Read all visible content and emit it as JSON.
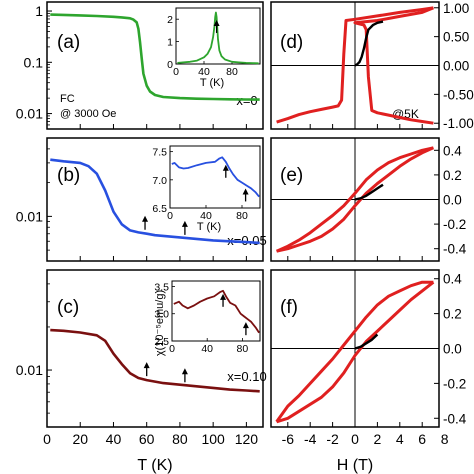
{
  "chart_data": [
    {
      "panel": "(a)",
      "type": "line",
      "yscale": "log",
      "xlim": [
        0,
        130
      ],
      "ylim": [
        0.005,
        1.5
      ],
      "ytick_labels": [
        "0.01",
        "0.1",
        "1"
      ],
      "yticks": [
        0.01,
        0.1,
        1
      ],
      "annotations": [
        "FC",
        "@ 3000 Oe"
      ],
      "series": [
        {
          "color": "#2ea52e",
          "x": [
            2,
            10,
            20,
            30,
            40,
            45,
            50,
            52,
            54,
            55,
            56,
            57,
            58,
            60,
            62,
            65,
            70,
            80,
            90,
            100,
            110,
            120,
            128
          ],
          "y": [
            0.85,
            0.84,
            0.82,
            0.8,
            0.77,
            0.75,
            0.72,
            0.68,
            0.6,
            0.45,
            0.25,
            0.12,
            0.06,
            0.035,
            0.027,
            0.023,
            0.021,
            0.02,
            0.0195,
            0.0192,
            0.019,
            0.0188,
            0.0187
          ]
        }
      ],
      "inset": {
        "xlabel": "T (K)",
        "xlim": [
          0,
          120
        ],
        "ylim": [
          0,
          2.5
        ],
        "xticks": [
          0,
          40,
          80
        ],
        "yticks": [
          0,
          1,
          2
        ],
        "xtick_labels": [
          "0",
          "40",
          "80"
        ],
        "ytick_labels": [
          "0",
          "1",
          "2"
        ],
        "series": {
          "color": "#2ea52e",
          "x": [
            2,
            10,
            20,
            30,
            40,
            45,
            50,
            53,
            55,
            56,
            57,
            58,
            59,
            60,
            62,
            65,
            70,
            80,
            90,
            100,
            110,
            118
          ],
          "y": [
            0.05,
            0.07,
            0.1,
            0.15,
            0.3,
            0.45,
            0.75,
            1.2,
            1.7,
            2.1,
            2.3,
            2.1,
            1.6,
            1.1,
            0.6,
            0.35,
            0.2,
            0.1,
            0.07,
            0.05,
            0.04,
            0.03
          ]
        },
        "arrows_x": [
          58
        ]
      }
    },
    {
      "panel": "(b)",
      "type": "line",
      "yscale": "log",
      "xlim": [
        0,
        130
      ],
      "ylim": [
        0.004,
        0.05
      ],
      "ytick_labels": [
        "0.01"
      ],
      "yticks": [
        0.01
      ],
      "annotations": [],
      "series": [
        {
          "color": "#2850e0",
          "x": [
            2,
            10,
            20,
            25,
            30,
            35,
            40,
            45,
            50,
            55,
            60,
            65,
            70,
            80,
            90,
            100,
            110,
            120,
            128
          ],
          "y": [
            0.032,
            0.031,
            0.03,
            0.028,
            0.024,
            0.017,
            0.011,
            0.0085,
            0.0075,
            0.0072,
            0.007,
            0.0068,
            0.0067,
            0.0065,
            0.0063,
            0.0061,
            0.006,
            0.0059,
            0.0058
          ]
        }
      ],
      "arrows_x": [
        59,
        83
      ],
      "inset": {
        "xlabel": "T (K)",
        "xlim": [
          0,
          100
        ],
        "ylim": [
          6.5,
          7.6
        ],
        "xticks": [
          0,
          40,
          80
        ],
        "yticks": [
          6.5,
          7.0,
          7.5
        ],
        "xtick_labels": [
          "0",
          "40",
          "80"
        ],
        "ytick_labels": [
          "6.5",
          "7.0",
          "7.5"
        ],
        "series": {
          "color": "#2850e0",
          "x": [
            2,
            5,
            10,
            15,
            20,
            30,
            40,
            50,
            55,
            58,
            62,
            66,
            70,
            75,
            80,
            85,
            90,
            95,
            99
          ],
          "y": [
            7.28,
            7.3,
            7.22,
            7.2,
            7.21,
            7.26,
            7.3,
            7.32,
            7.38,
            7.4,
            7.32,
            7.2,
            7.1,
            7.0,
            6.95,
            6.9,
            6.85,
            6.78,
            6.7
          ]
        },
        "arrows_x": [
          62,
          84
        ]
      }
    },
    {
      "panel": "(c)",
      "type": "line",
      "yscale": "log",
      "xlim": [
        0,
        130
      ],
      "ylim": [
        0.004,
        0.05
      ],
      "ytick_labels": [
        "0.01"
      ],
      "yticks": [
        0.01
      ],
      "annotations": [],
      "series": [
        {
          "color": "#7a1010",
          "x": [
            2,
            10,
            20,
            30,
            35,
            40,
            45,
            50,
            55,
            60,
            65,
            70,
            80,
            90,
            100,
            110,
            120,
            128
          ],
          "y": [
            0.019,
            0.0188,
            0.0183,
            0.0175,
            0.016,
            0.013,
            0.011,
            0.0095,
            0.0088,
            0.0085,
            0.0083,
            0.0081,
            0.0079,
            0.0077,
            0.0075,
            0.0073,
            0.0072,
            0.0071
          ]
        }
      ],
      "arrows_x": [
        60,
        83
      ],
      "inset": {
        "xlabel": "",
        "xlim": [
          0,
          100
        ],
        "ylim": [
          2.5,
          3.6
        ],
        "xticks": [
          0,
          40,
          80
        ],
        "yticks": [
          2.5,
          3.0,
          3.5
        ],
        "xtick_labels": [
          "0",
          "40",
          "80"
        ],
        "ytick_labels": [
          "2.5",
          "3.0",
          "3.5"
        ],
        "series": {
          "color": "#7a1010",
          "x": [
            2,
            8,
            12,
            18,
            25,
            32,
            40,
            48,
            55,
            58,
            62,
            66,
            72,
            78,
            82,
            86,
            90,
            95,
            99
          ],
          "y": [
            3.18,
            3.22,
            3.15,
            3.1,
            3.15,
            3.22,
            3.28,
            3.32,
            3.4,
            3.42,
            3.3,
            3.2,
            3.15,
            3.0,
            2.95,
            2.9,
            2.85,
            2.75,
            2.65
          ]
        },
        "arrows_x": [
          58,
          84
        ]
      }
    },
    {
      "panel": "(d)",
      "type": "line",
      "xlim": [
        -7.5,
        7.5
      ],
      "ylim": [
        -1.1,
        1.1
      ],
      "ytick_labels": [
        "1.00",
        "0.50",
        "0.00",
        "-0.50",
        "-1.00"
      ],
      "yticks": [
        1.0,
        0.5,
        0.0,
        -0.5,
        -1.0
      ],
      "annotations": [
        "@5K"
      ],
      "loop": {
        "color": "#e02020",
        "x_up": [
          -7,
          -6,
          -5,
          -4,
          -3,
          -2,
          -1.5,
          -1.2,
          -1.0,
          -0.8,
          0,
          2,
          4,
          6,
          7
        ],
        "y_up": [
          -0.98,
          -0.92,
          -0.85,
          -0.8,
          -0.76,
          -0.72,
          -0.7,
          -0.6,
          0.2,
          0.78,
          0.8,
          0.86,
          0.92,
          0.97,
          1.0
        ],
        "x_down": [
          7,
          6,
          4,
          2,
          0,
          0.8,
          1.0,
          1.2,
          1.5,
          2,
          3,
          4,
          5,
          6,
          7
        ],
        "y_down": [
          1.0,
          0.92,
          0.85,
          0.78,
          0.74,
          0.7,
          0.62,
          -0.2,
          -0.78,
          -0.82,
          -0.86,
          -0.9,
          -0.94,
          -0.97,
          -1.0
        ]
      },
      "virgin": {
        "color": "#000000",
        "x": [
          0,
          0.2,
          0.4,
          0.6,
          0.8,
          1.0,
          1.2,
          1.6,
          2.0,
          2.5
        ],
        "y": [
          0.0,
          0.02,
          0.06,
          0.15,
          0.3,
          0.48,
          0.62,
          0.7,
          0.74,
          0.76
        ]
      }
    },
    {
      "panel": "(e)",
      "type": "line",
      "xlim": [
        -7.5,
        7.5
      ],
      "ylim": [
        -0.5,
        0.5
      ],
      "ytick_labels": [
        "0.4",
        "0.2",
        "0.0",
        "-0.2",
        "-0.4"
      ],
      "yticks": [
        0.4,
        0.2,
        0.0,
        -0.2,
        -0.4
      ],
      "annotations": [],
      "loop": {
        "color": "#e02020",
        "x_up": [
          -7,
          -6,
          -5,
          -4,
          -3,
          -2,
          -1,
          0,
          1,
          2,
          3,
          4,
          5,
          6,
          7
        ],
        "y_up": [
          -0.42,
          -0.4,
          -0.37,
          -0.34,
          -0.3,
          -0.24,
          -0.16,
          -0.05,
          0.05,
          0.13,
          0.2,
          0.27,
          0.33,
          0.38,
          0.42
        ],
        "x_down": [
          7,
          6,
          5,
          4,
          3,
          2,
          1,
          0,
          -1,
          -2,
          -3,
          -4,
          -5,
          -6,
          -7
        ],
        "y_down": [
          0.42,
          0.4,
          0.37,
          0.34,
          0.3,
          0.24,
          0.16,
          0.05,
          -0.05,
          -0.13,
          -0.2,
          -0.27,
          -0.33,
          -0.38,
          -0.42
        ]
      },
      "virgin": {
        "color": "#000000",
        "x": [
          0,
          0.5,
          1.0,
          1.5,
          2.0,
          2.5
        ],
        "y": [
          0.0,
          0.01,
          0.03,
          0.06,
          0.09,
          0.12
        ]
      }
    },
    {
      "panel": "(f)",
      "type": "line",
      "xlim": [
        -7.5,
        7.5
      ],
      "ylim": [
        -0.45,
        0.45
      ],
      "ytick_labels": [
        "0.4",
        "0.2",
        "0.0",
        "-0.2",
        "-0.4"
      ],
      "yticks": [
        0.4,
        0.2,
        0.0,
        -0.2,
        -0.4
      ],
      "xticks": [
        -6,
        -4,
        -2,
        0,
        2,
        4,
        6,
        8
      ],
      "xtick_labels": [
        "-6",
        "-4",
        "-2",
        "0",
        "2",
        "4",
        "6",
        "8"
      ],
      "annotations": [],
      "loop": {
        "color": "#e02020",
        "x_up": [
          -7,
          -6,
          -5,
          -4,
          -3,
          -2,
          -1,
          0,
          1,
          2,
          3,
          4,
          5,
          6,
          7
        ],
        "y_up": [
          -0.42,
          -0.4,
          -0.36,
          -0.32,
          -0.28,
          -0.22,
          -0.14,
          -0.04,
          0.04,
          0.1,
          0.16,
          0.22,
          0.28,
          0.33,
          0.38
        ],
        "x_down": [
          7,
          6,
          5,
          4,
          3,
          2,
          1,
          0,
          -1,
          -2,
          -3,
          -4,
          -5,
          -6,
          -7
        ],
        "y_down": [
          0.38,
          0.38,
          0.36,
          0.33,
          0.3,
          0.25,
          0.18,
          0.1,
          0.02,
          -0.06,
          -0.13,
          -0.2,
          -0.27,
          -0.33,
          -0.42
        ]
      },
      "virgin": {
        "color": "#000000",
        "x": [
          0,
          0.5,
          1.0,
          1.5,
          2.0
        ],
        "y": [
          0.0,
          0.01,
          0.03,
          0.05,
          0.08
        ]
      }
    }
  ],
  "labels": {
    "x0": "x=0",
    "x005": "x=0.05",
    "x010": "x=0.10",
    "ylabel_shared": "χ(10⁻⁵emu/g)",
    "xlabel_left": "T (K)",
    "xlabel_right": "H (T)",
    "xticks_left": [
      "0",
      "20",
      "40",
      "60",
      "80",
      "100",
      "120"
    ]
  }
}
